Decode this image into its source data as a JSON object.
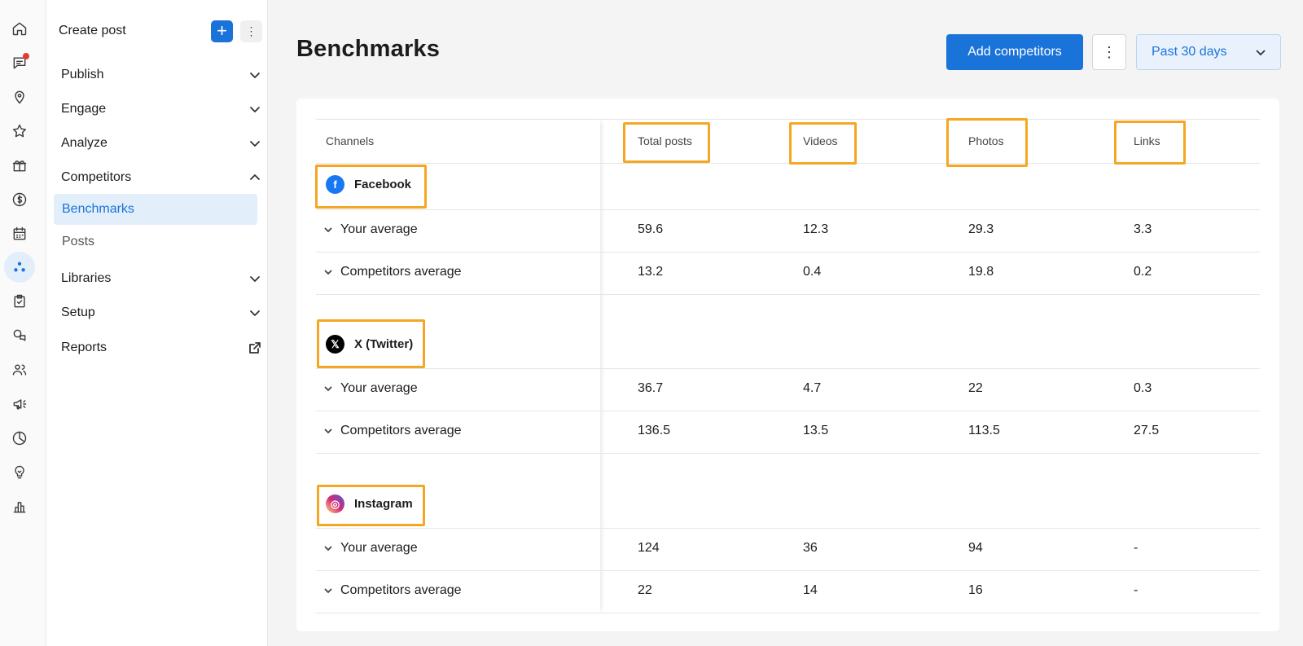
{
  "rail": {
    "icons": [
      "home-icon",
      "messages-icon",
      "location-icon",
      "star-icon",
      "gift-icon",
      "dollar-icon",
      "calendar-icon",
      "competitors-icon",
      "tasks-icon",
      "chat-icon",
      "people-icon",
      "megaphone-icon",
      "pie-chart-icon",
      "bulb-icon",
      "bar-chart-icon"
    ]
  },
  "nav": {
    "create_post": "Create post",
    "plus": "+",
    "more": "⋮",
    "items": {
      "publish": "Publish",
      "engage": "Engage",
      "analyze": "Analyze",
      "competitors": "Competitors",
      "benchmarks": "Benchmarks",
      "posts": "Posts",
      "libraries": "Libraries",
      "setup": "Setup",
      "reports": "Reports"
    }
  },
  "header": {
    "title": "Benchmarks",
    "add_competitors": "Add competitors",
    "more": "⋮",
    "date_range": "Past 30 days"
  },
  "table": {
    "columns": [
      "Channels",
      "Total posts",
      "Videos",
      "Photos",
      "Links"
    ],
    "channels": [
      {
        "name": "Facebook",
        "icon": "facebook-icon",
        "color": "#1877f2",
        "rows": [
          {
            "label": "Your average",
            "values": [
              "59.6",
              "12.3",
              "29.3",
              "3.3"
            ]
          },
          {
            "label": "Competitors average",
            "values": [
              "13.2",
              "0.4",
              "19.8",
              "0.2"
            ]
          }
        ]
      },
      {
        "name": "X (Twitter)",
        "icon": "x-icon",
        "color": "#000000",
        "rows": [
          {
            "label": "Your average",
            "values": [
              "36.7",
              "4.7",
              "22",
              "0.3"
            ]
          },
          {
            "label": "Competitors average",
            "values": [
              "136.5",
              "13.5",
              "113.5",
              "27.5"
            ]
          }
        ]
      },
      {
        "name": "Instagram",
        "icon": "instagram-icon",
        "color": "#d62976",
        "rows": [
          {
            "label": "Your average",
            "values": [
              "124",
              "36",
              "94",
              "-"
            ]
          },
          {
            "label": "Competitors average",
            "values": [
              "22",
              "14",
              "16",
              "-"
            ]
          }
        ]
      }
    ]
  },
  "colors": {
    "accent": "#1a73d9",
    "highlight": "#f5a623",
    "notification": "#e53935"
  }
}
